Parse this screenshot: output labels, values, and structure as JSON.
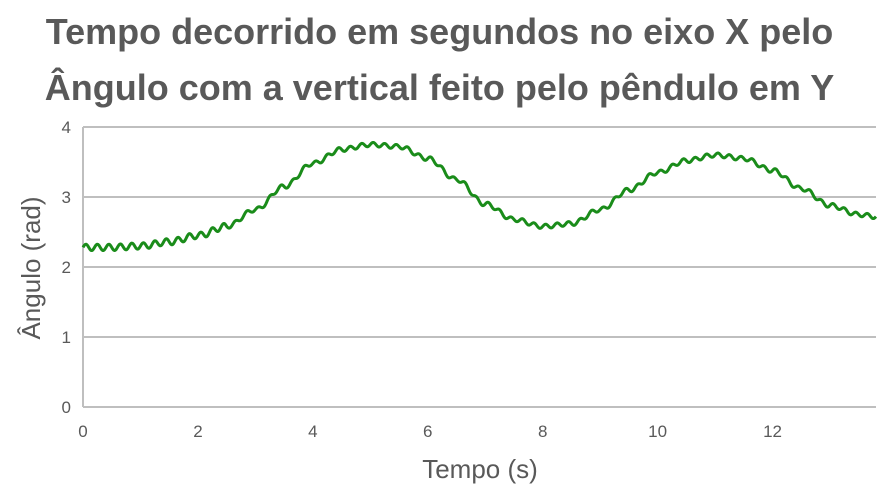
{
  "chart_data": {
    "type": "line",
    "title_line1": "Tempo decorrido em segundos no eixo X pelo",
    "title_line2": "Ângulo com a vertical feito pelo pêndulo em Y",
    "xlabel": "Tempo (s)",
    "ylabel": "Ângulo (rad)",
    "xlim": [
      0,
      13.8
    ],
    "ylim": [
      0,
      4
    ],
    "xticks": [
      "0",
      "2",
      "4",
      "6",
      "8",
      "10",
      "12"
    ],
    "yticks": [
      "0",
      "1",
      "2",
      "3",
      "4"
    ],
    "grid": true,
    "series_color": "#1a8c1a",
    "series": [
      {
        "x": [
          0,
          0.5,
          1.0,
          1.5,
          2.0,
          2.5,
          3.0,
          3.5,
          4.0,
          4.5,
          5.0,
          5.5,
          6.0,
          6.5,
          7.0,
          7.5,
          8.0,
          8.5,
          9.0,
          9.5,
          10.0,
          10.5,
          11.0,
          11.5,
          12.0,
          12.5,
          13.0,
          13.5,
          13.8
        ],
        "y": [
          2.28,
          2.28,
          2.3,
          2.36,
          2.45,
          2.58,
          2.82,
          3.15,
          3.48,
          3.68,
          3.75,
          3.72,
          3.55,
          3.25,
          2.9,
          2.68,
          2.58,
          2.62,
          2.82,
          3.1,
          3.35,
          3.52,
          3.6,
          3.55,
          3.38,
          3.12,
          2.88,
          2.75,
          2.72
        ]
      }
    ]
  }
}
